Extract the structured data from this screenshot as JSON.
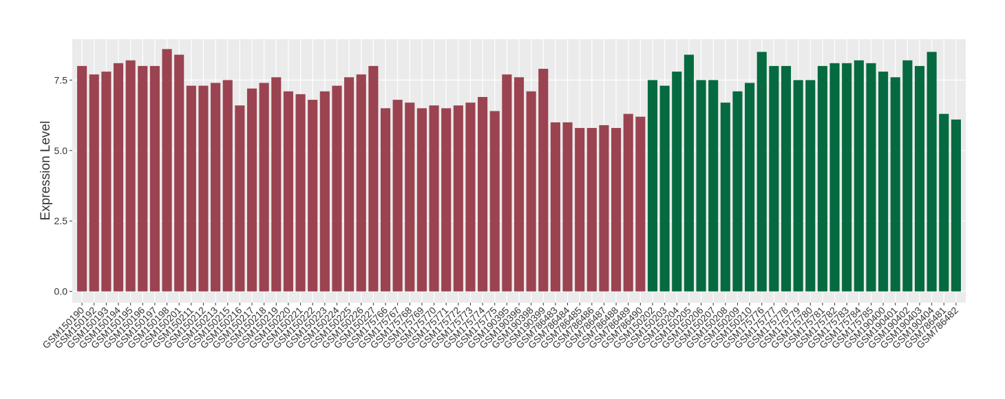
{
  "chart_data": {
    "type": "bar",
    "y_label": "Expression Level",
    "groups": [
      {
        "color": "#9b4350",
        "categories": [
          "GSM150190",
          "GSM150192",
          "GSM150193",
          "GSM150194",
          "GSM150195",
          "GSM150196",
          "GSM150197",
          "GSM150198",
          "GSM150201",
          "GSM150211",
          "GSM150212",
          "GSM150213",
          "GSM150215",
          "GSM150216",
          "GSM150217",
          "GSM150218",
          "GSM150219",
          "GSM150220",
          "GSM150221",
          "GSM150222",
          "GSM150223",
          "GSM150224",
          "GSM150225",
          "GSM150226",
          "GSM150227",
          "GSM175766",
          "GSM175767",
          "GSM175768",
          "GSM175769",
          "GSM175770",
          "GSM175771",
          "GSM175772",
          "GSM175773",
          "GSM175774",
          "GSM175775",
          "GSM190395",
          "GSM190396",
          "GSM190398",
          "GSM190399",
          "GSM786483",
          "GSM786484",
          "GSM786485",
          "GSM786486",
          "GSM786487",
          "GSM786488",
          "GSM786489",
          "GSM786490"
        ],
        "values": [
          8.0,
          7.7,
          7.8,
          8.1,
          8.2,
          8.0,
          8.0,
          8.6,
          8.4,
          7.3,
          7.3,
          7.4,
          7.5,
          6.6,
          7.2,
          7.4,
          7.6,
          7.1,
          7.0,
          6.8,
          7.1,
          7.3,
          7.6,
          7.7,
          8.0,
          6.5,
          6.8,
          6.7,
          6.5,
          6.6,
          6.5,
          6.6,
          6.7,
          6.9,
          6.4,
          7.7,
          7.6,
          7.1,
          7.9,
          6.0,
          6.0,
          5.8,
          5.8,
          5.9,
          5.8,
          6.3,
          6.2
        ]
      },
      {
        "color": "#056a40",
        "categories": [
          "GSM150202",
          "GSM150203",
          "GSM150204",
          "GSM150205",
          "GSM150206",
          "GSM150207",
          "GSM150208",
          "GSM150209",
          "GSM150210",
          "GSM175776",
          "GSM175777",
          "GSM175778",
          "GSM175779",
          "GSM175780",
          "GSM175781",
          "GSM175782",
          "GSM175783",
          "GSM175784",
          "GSM175785",
          "GSM190400",
          "GSM190401",
          "GSM190402",
          "GSM190403",
          "GSM190404",
          "GSM786481",
          "GSM786482"
        ],
        "values": [
          7.5,
          7.3,
          7.8,
          8.4,
          7.5,
          7.5,
          6.7,
          7.1,
          7.4,
          8.5,
          8.0,
          8.0,
          7.5,
          7.5,
          8.0,
          8.1,
          8.1,
          8.2,
          8.1,
          7.8,
          7.6,
          8.2,
          8.0,
          8.5,
          6.3,
          6.1
        ]
      }
    ],
    "ylim": [
      -0.4,
      8.95
    ],
    "yticks": [
      {
        "value": 0,
        "label": "0.0"
      },
      2.5,
      {
        "value": 5,
        "label": "5.0"
      },
      7.5
    ],
    "grid": true
  }
}
